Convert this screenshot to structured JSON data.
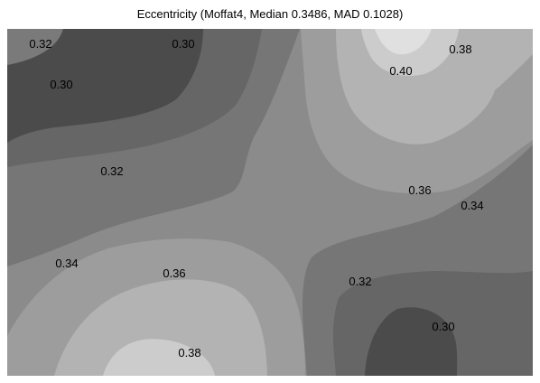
{
  "chart_data": {
    "type": "contour",
    "title": "Eccentricity (Moffat4, Median 0.3486, MAD 0.1028)",
    "xlabel": "",
    "ylabel": "",
    "grid": false,
    "legend": "none",
    "colormap": "grayscale",
    "levels": [
      0.3,
      0.32,
      0.34,
      0.36,
      0.38,
      0.4
    ],
    "contour_labels": [
      {
        "text": "0.32"
      },
      {
        "text": "0.30"
      },
      {
        "text": "0.30"
      },
      {
        "text": "0.32"
      },
      {
        "text": "0.34"
      },
      {
        "text": "0.36"
      },
      {
        "text": "0.38"
      },
      {
        "text": "0.40"
      },
      {
        "text": "0.38"
      },
      {
        "text": "0.36"
      },
      {
        "text": "0.34"
      },
      {
        "text": "0.32"
      },
      {
        "text": "0.30"
      }
    ]
  }
}
